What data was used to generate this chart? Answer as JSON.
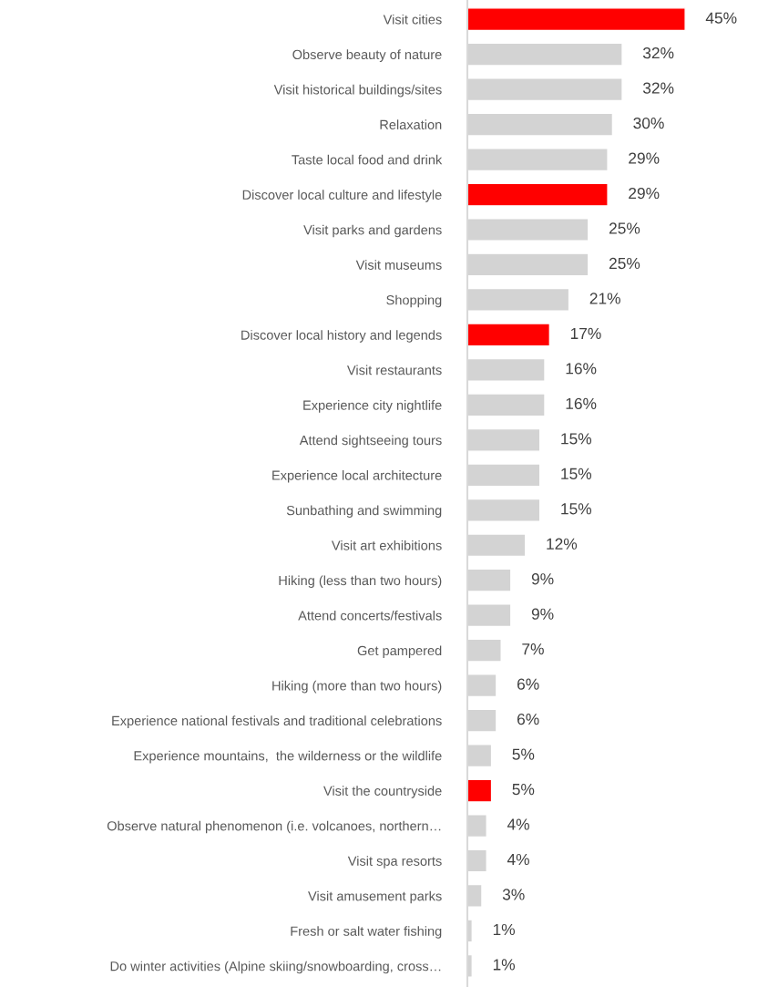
{
  "chart_data": {
    "type": "bar",
    "orientation": "horizontal",
    "categories": [
      "Visit cities",
      "Observe beauty of nature",
      "Visit historical buildings/sites",
      "Relaxation",
      "Taste local food and drink",
      "Discover local culture and lifestyle",
      "Visit parks and gardens",
      "Visit museums",
      "Shopping",
      "Discover local history and legends",
      "Visit restaurants",
      "Experience city nightlife",
      "Attend sightseeing tours",
      "Experience local architecture",
      "Sunbathing and swimming",
      "Visit art exhibitions",
      "Hiking (less than two hours)",
      "Attend concerts/festivals",
      "Get pampered",
      "Hiking (more than two hours)",
      "Experience national festivals and traditional celebrations",
      "Experience mountains,  the wilderness or the wildlife",
      "Visit the countryside",
      "Observe natural phenomenon (i.e. volcanoes, northern…",
      "Visit spa resorts",
      "Visit amusement parks",
      "Fresh or salt water fishing",
      "Do winter activities (Alpine skiing/snowboarding, cross…"
    ],
    "values": [
      45,
      32,
      32,
      30,
      29,
      29,
      25,
      25,
      21,
      17,
      16,
      16,
      15,
      15,
      15,
      12,
      9,
      9,
      7,
      6,
      6,
      5,
      5,
      4,
      4,
      3,
      1,
      1
    ],
    "colors": [
      "#ff0000",
      "#d3d3d3",
      "#d3d3d3",
      "#d3d3d3",
      "#d3d3d3",
      "#ff0000",
      "#d3d3d3",
      "#d3d3d3",
      "#d3d3d3",
      "#ff0000",
      "#d3d3d3",
      "#d3d3d3",
      "#d3d3d3",
      "#d3d3d3",
      "#d3d3d3",
      "#d3d3d3",
      "#d3d3d3",
      "#d3d3d3",
      "#d3d3d3",
      "#d3d3d3",
      "#d3d3d3",
      "#d3d3d3",
      "#ff0000",
      "#d3d3d3",
      "#d3d3d3",
      "#d3d3d3",
      "#d3d3d3",
      "#d3d3d3"
    ],
    "value_labels": [
      "45%",
      "32%",
      "32%",
      "30%",
      "29%",
      "29%",
      "25%",
      "25%",
      "21%",
      "17%",
      "16%",
      "16%",
      "15%",
      "15%",
      "15%",
      "12%",
      "9%",
      "9%",
      "7%",
      "6%",
      "6%",
      "5%",
      "5%",
      "4%",
      "4%",
      "3%",
      "1%",
      "1%"
    ],
    "tick_labels": "y",
    "grid": false,
    "legend": false
  }
}
